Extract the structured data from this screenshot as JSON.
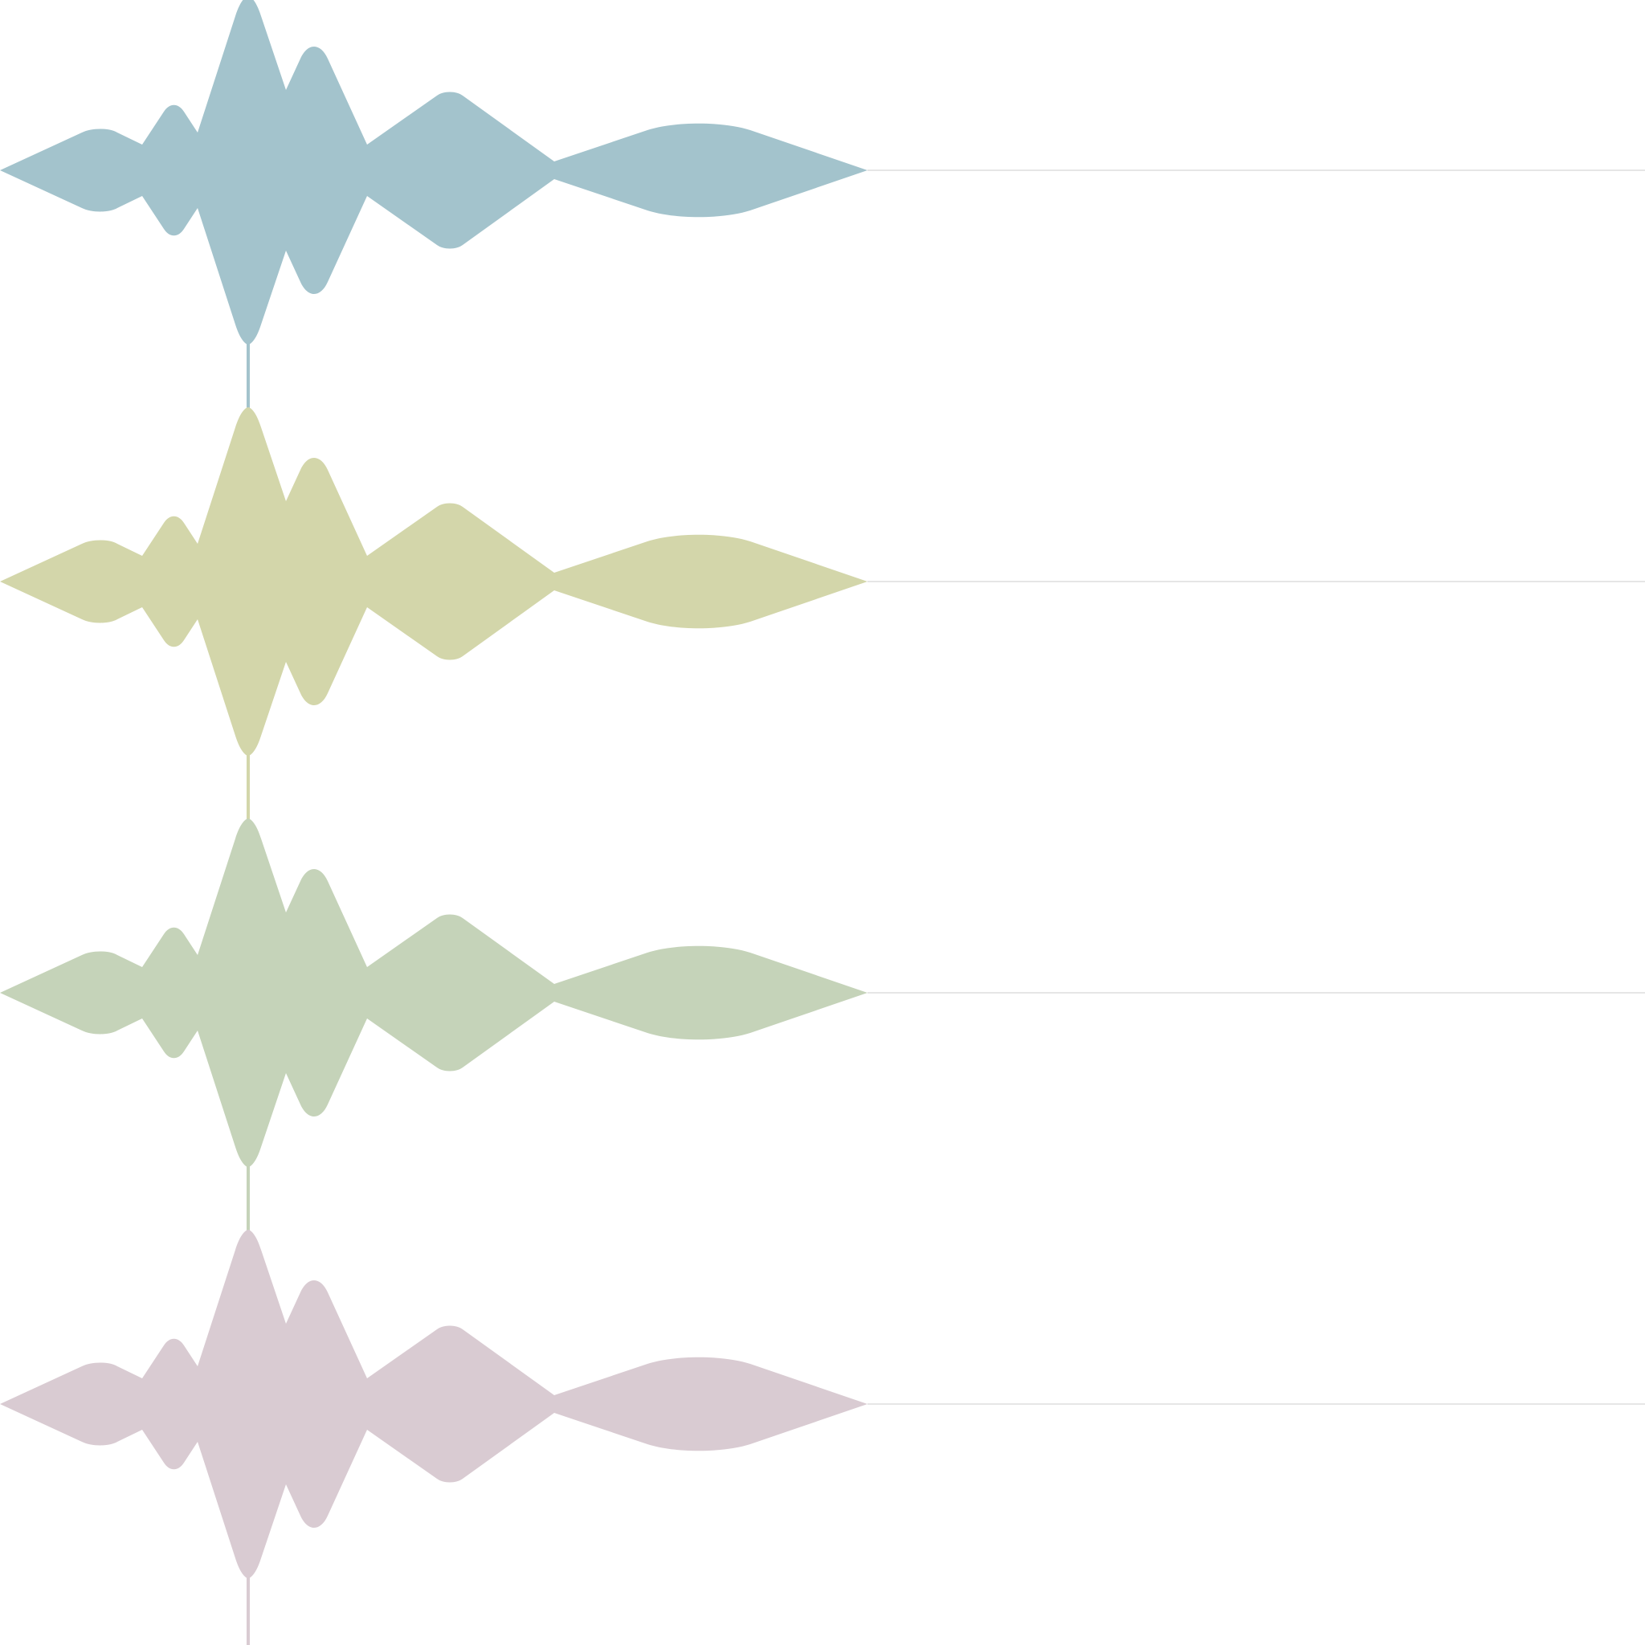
{
  "figure": {
    "type": "stacked-waveform",
    "background_color": "#ffffff",
    "baseline_color": "#e6e6e6",
    "track_count": 4,
    "tracks": [
      {
        "color": "#a3c3cc"
      },
      {
        "color": "#d3d6aa"
      },
      {
        "color": "#c5d3b9"
      },
      {
        "color": "#d9cbd2"
      }
    ]
  }
}
